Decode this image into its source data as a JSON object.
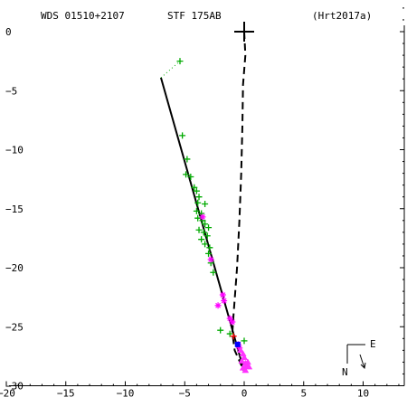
{
  "header": {
    "left": "WDS 01510+2107",
    "center": "STF 175AB",
    "right": "(Hrt2017a)"
  },
  "compass": {
    "east_label": "E",
    "north_label": "N"
  },
  "colors": {
    "hipparcos_green": "#00aa00",
    "speckle_magenta": "#ff00ff",
    "primary_black": "#000000",
    "highlight_red": "#ff0000",
    "triangle_magenta": "#ff33ff"
  },
  "chart_data": {
    "type": "scatter",
    "title": "",
    "xlabel": "",
    "ylabel": "",
    "xlim": [
      -20,
      14
    ],
    "ylim": [
      -30,
      2.5
    ],
    "x_ticks": [
      -20,
      -15,
      -10,
      -5,
      0,
      5,
      10
    ],
    "y_ticks": [
      0,
      -5,
      -10,
      -15,
      -20,
      -25,
      -30
    ],
    "x_tick_labels": [
      "−20",
      "−15",
      "−10",
      "−5",
      "0",
      "5",
      "10"
    ],
    "y_tick_labels": [
      "0",
      "−5",
      "−10",
      "−15",
      "−20",
      "−25",
      "−30"
    ],
    "primary": {
      "x": 0,
      "y": 0
    },
    "fitted_line": {
      "start": [
        -7.0,
        -3.9
      ],
      "end": [
        0.0,
        -28.8
      ]
    },
    "dashed_path": [
      [
        0.0,
        0.0
      ],
      [
        0.1,
        -2.0
      ],
      [
        -0.1,
        -4.5
      ],
      [
        -0.15,
        -8.0
      ],
      [
        -0.25,
        -12.0
      ],
      [
        -0.4,
        -16.0
      ],
      [
        -0.6,
        -20.0
      ],
      [
        -0.9,
        -24.0
      ],
      [
        -1.0,
        -25.5
      ],
      [
        -0.8,
        -27.0
      ],
      [
        0.0,
        -28.8
      ]
    ],
    "dotted_segment": [
      [
        -7.0,
        -3.9
      ],
      [
        -5.4,
        -2.5
      ]
    ],
    "series": [
      {
        "marker": "plus",
        "color": "#00aa00",
        "points": [
          [
            -5.4,
            -2.5
          ],
          [
            -5.2,
            -8.8
          ],
          [
            -4.8,
            -10.8
          ],
          [
            -4.9,
            -12.1
          ],
          [
            -4.5,
            -12.3
          ],
          [
            -4.2,
            -13.2
          ],
          [
            -4.0,
            -13.5
          ],
          [
            -3.8,
            -14.0
          ],
          [
            -3.9,
            -14.5
          ],
          [
            -3.3,
            -14.6
          ],
          [
            -4.0,
            -15.2
          ],
          [
            -3.6,
            -15.4
          ],
          [
            -3.9,
            -15.8
          ],
          [
            -3.5,
            -16.0
          ],
          [
            -3.3,
            -16.3
          ],
          [
            -3.0,
            -16.6
          ],
          [
            -3.8,
            -16.8
          ],
          [
            -3.4,
            -17.0
          ],
          [
            -3.1,
            -17.3
          ],
          [
            -3.6,
            -17.6
          ],
          [
            -3.3,
            -18.0
          ],
          [
            -2.9,
            -18.3
          ],
          [
            -3.0,
            -18.8
          ],
          [
            -2.8,
            -19.6
          ],
          [
            -2.6,
            -20.4
          ],
          [
            -2.0,
            -25.3
          ],
          [
            -1.2,
            -25.6
          ],
          [
            0.0,
            -26.2
          ]
        ]
      },
      {
        "marker": "star",
        "color": "#ff00ff",
        "points": [
          [
            -3.5,
            -15.7
          ],
          [
            -2.8,
            -19.3
          ],
          [
            -1.8,
            -22.3
          ],
          [
            -1.7,
            -22.8
          ],
          [
            -2.2,
            -23.2
          ],
          [
            -1.2,
            -24.3
          ],
          [
            -1.0,
            -24.6
          ],
          [
            -0.5,
            -26.5
          ],
          [
            -0.4,
            -26.8
          ]
        ]
      },
      {
        "marker": "triangle",
        "color": "#ff33ff",
        "points": [
          [
            -0.3,
            -27.0
          ],
          [
            -0.1,
            -27.3
          ],
          [
            0.0,
            -27.6
          ],
          [
            -0.2,
            -27.9
          ],
          [
            0.1,
            -28.1
          ],
          [
            0.2,
            -28.3
          ],
          [
            -0.1,
            -28.5
          ],
          [
            0.3,
            -28.0
          ],
          [
            0.4,
            -28.4
          ],
          [
            0.1,
            -28.7
          ]
        ]
      },
      {
        "marker": "square",
        "color": "#0000ff",
        "points": [
          [
            -0.55,
            -26.5
          ]
        ]
      },
      {
        "marker": "plus",
        "color": "#ff0000",
        "points": [
          [
            -0.9,
            -25.8
          ]
        ]
      }
    ]
  }
}
